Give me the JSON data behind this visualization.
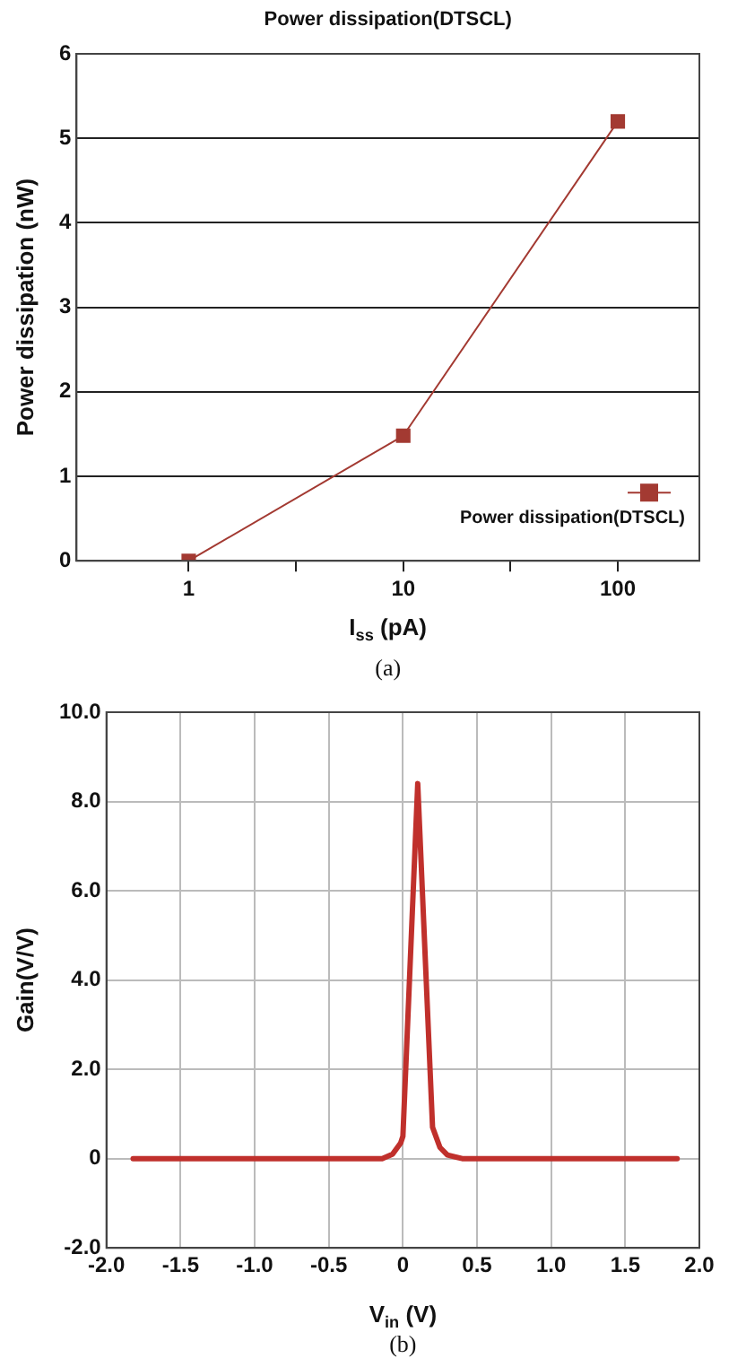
{
  "chart_data": [
    {
      "type": "line",
      "title": "Power dissipation(DTSCL)",
      "xlabel": "I$_{ss}$ (pA)",
      "ylabel": "Power dissipation (nW)",
      "x": [
        1,
        10,
        100
      ],
      "series": [
        {
          "name": "Power dissipation(DTSCL)",
          "color": "#a33a32",
          "values": [
            0,
            1.48,
            5.2
          ]
        }
      ],
      "log": "x",
      "xlim": [
        0.3,
        240
      ],
      "xticks": [
        1,
        {
          "value": 3.16,
          "label": null
        },
        10,
        {
          "value": 31.6,
          "label": null
        },
        100
      ],
      "ylim": [
        0,
        6
      ],
      "yticks": [
        0,
        1,
        2,
        3,
        4,
        5,
        6
      ],
      "grid": "y",
      "legend": "bottom right",
      "marker": "square",
      "line_style": "solid",
      "annotations": [
        "(a)"
      ]
    },
    {
      "type": "line",
      "xlabel": "V$_{in}$ (V)",
      "ylabel": "Gain(V/V)",
      "x": [
        -1.82,
        -0.5,
        -0.14,
        -0.07,
        -0.015,
        0,
        0.1,
        0.2,
        0.25,
        0.3,
        0.4,
        1.0,
        1.85
      ],
      "series": [
        {
          "color": "#c0302c",
          "values": [
            0,
            0,
            0,
            0.1,
            0.35,
            0.5,
            8.4,
            0.7,
            0.25,
            0.08,
            0,
            0,
            0
          ]
        }
      ],
      "xlim": [
        -2,
        2
      ],
      "xticks": [
        {
          "value": -2,
          "label": "-2.0"
        },
        -1.5,
        {
          "value": -1,
          "label": "-1.0"
        },
        -0.5,
        0,
        0.5,
        {
          "value": 1,
          "label": "1.0"
        },
        1.5,
        {
          "value": 2,
          "label": "2.0"
        }
      ],
      "ylim": [
        -2,
        10
      ],
      "yticks": [
        {
          "value": -2,
          "label": "-2.0"
        },
        0,
        {
          "value": 2,
          "label": "2.0"
        },
        {
          "value": 4,
          "label": "4.0"
        },
        {
          "value": 6,
          "label": "6.0"
        },
        {
          "value": 8,
          "label": "8.0"
        },
        {
          "value": 10,
          "label": "10.0"
        }
      ],
      "grid": true,
      "legend": false,
      "marker": "none",
      "line_style": "solid",
      "annotations": [
        "(b)"
      ]
    }
  ]
}
